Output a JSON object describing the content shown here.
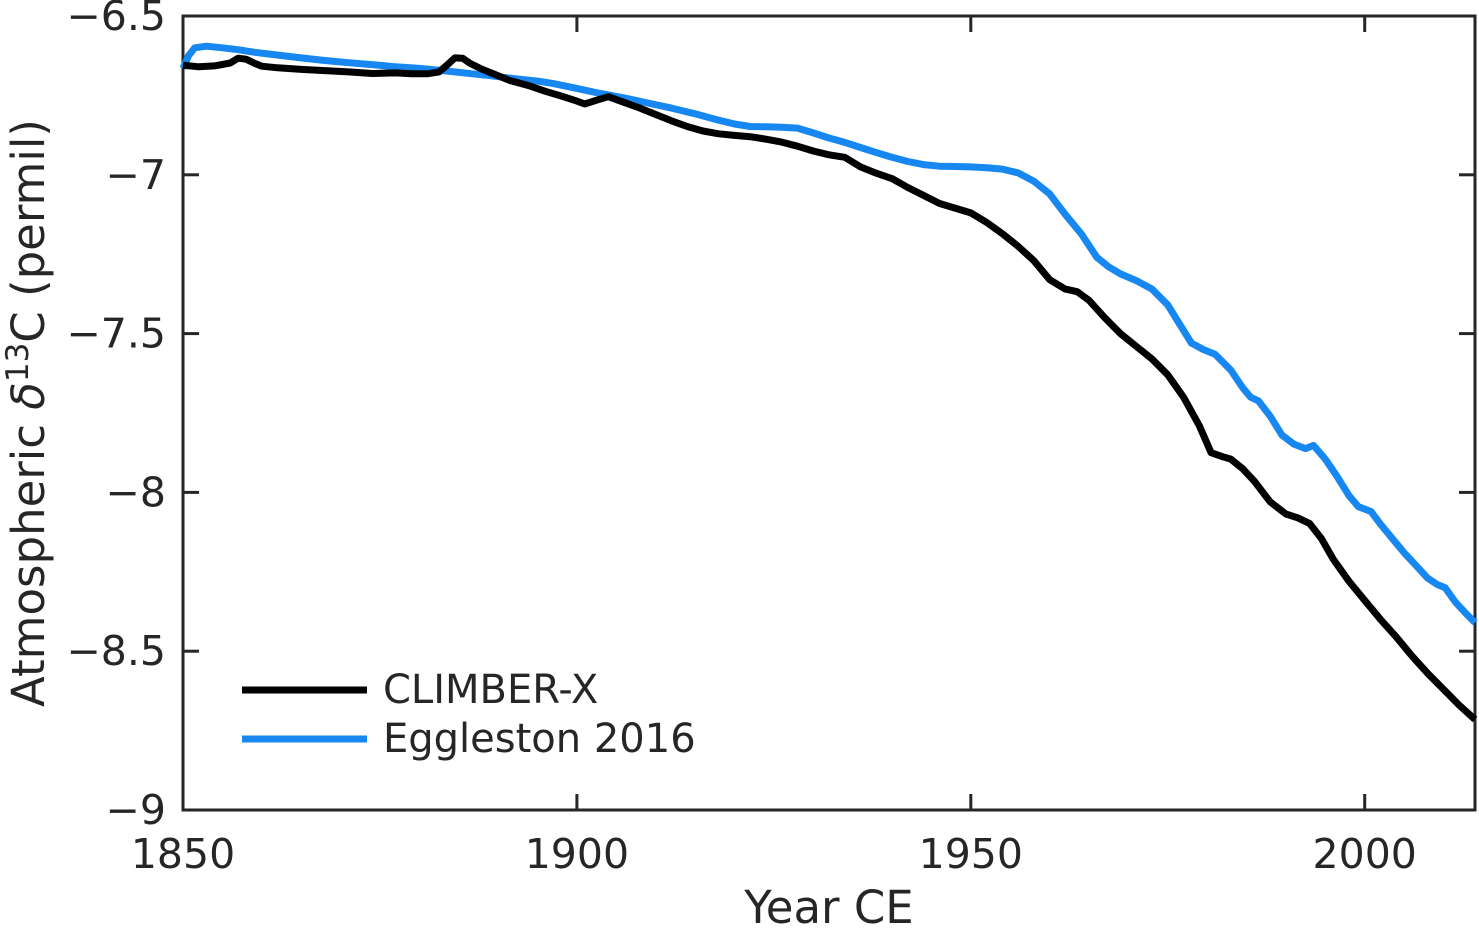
{
  "figure": {
    "background": "#ffffff",
    "axis_color": "#262626",
    "text_color": "#262626"
  },
  "chart_data": {
    "type": "line",
    "title": "",
    "xlabel": "Year CE",
    "ylabel": "Atmospheric δ13C (permil)",
    "ylabel_rich": [
      {
        "t": "Atmospheric ",
        "style": "normal"
      },
      {
        "t": "δ",
        "style": "italic"
      },
      {
        "t": "13",
        "sup": true
      },
      {
        "t": "C (permil)",
        "style": "normal"
      }
    ],
    "xlim": [
      1850,
      2014
    ],
    "ylim": [
      -9,
      -6.5
    ],
    "xticks": [
      1850,
      1900,
      1950,
      2000
    ],
    "xtick_labels": [
      "1850",
      "1900",
      "1950",
      "2000"
    ],
    "yticks": [
      -9,
      -8.5,
      -8,
      -7.5,
      -7,
      -6.5
    ],
    "ytick_labels": [
      "−9",
      "−8.5",
      "−8",
      "−7.5",
      "−7",
      "−6.5"
    ],
    "grid": false,
    "box": true,
    "ticks_direction": "in",
    "legend_position": "lower-left-inside",
    "legend": [
      "CLIMBER-X",
      "Eggleston 2016"
    ],
    "series": [
      {
        "name": "Eggleston 2016",
        "color": "#1787f2",
        "line_width": 7,
        "points": [
          [
            1850,
            -6.665
          ],
          [
            1850.7,
            -6.625
          ],
          [
            1851.5,
            -6.6
          ],
          [
            1853,
            -6.595
          ],
          [
            1855,
            -6.6
          ],
          [
            1857,
            -6.606
          ],
          [
            1859,
            -6.614
          ],
          [
            1861,
            -6.62
          ],
          [
            1863,
            -6.626
          ],
          [
            1865,
            -6.632
          ],
          [
            1868,
            -6.64
          ],
          [
            1871,
            -6.647
          ],
          [
            1874,
            -6.653
          ],
          [
            1877,
            -6.66
          ],
          [
            1880,
            -6.665
          ],
          [
            1883,
            -6.672
          ],
          [
            1886,
            -6.68
          ],
          [
            1889,
            -6.688
          ],
          [
            1892,
            -6.697
          ],
          [
            1895,
            -6.705
          ],
          [
            1897,
            -6.713
          ],
          [
            1900,
            -6.728
          ],
          [
            1903,
            -6.744
          ],
          [
            1906,
            -6.758
          ],
          [
            1909,
            -6.774
          ],
          [
            1912,
            -6.79
          ],
          [
            1915,
            -6.808
          ],
          [
            1918,
            -6.828
          ],
          [
            1920,
            -6.84
          ],
          [
            1922,
            -6.848
          ],
          [
            1924,
            -6.849
          ],
          [
            1926,
            -6.85
          ],
          [
            1928,
            -6.853
          ],
          [
            1930,
            -6.868
          ],
          [
            1932,
            -6.884
          ],
          [
            1934,
            -6.898
          ],
          [
            1936,
            -6.914
          ],
          [
            1938,
            -6.93
          ],
          [
            1940,
            -6.945
          ],
          [
            1942,
            -6.958
          ],
          [
            1944,
            -6.968
          ],
          [
            1946,
            -6.973
          ],
          [
            1948,
            -6.974
          ],
          [
            1950,
            -6.975
          ],
          [
            1952,
            -6.978
          ],
          [
            1954,
            -6.982
          ],
          [
            1956,
            -6.994
          ],
          [
            1958,
            -7.02
          ],
          [
            1960,
            -7.06
          ],
          [
            1962,
            -7.125
          ],
          [
            1964,
            -7.185
          ],
          [
            1966,
            -7.26
          ],
          [
            1967.5,
            -7.29
          ],
          [
            1969,
            -7.312
          ],
          [
            1971,
            -7.333
          ],
          [
            1973,
            -7.36
          ],
          [
            1975,
            -7.41
          ],
          [
            1976.5,
            -7.47
          ],
          [
            1978,
            -7.53
          ],
          [
            1979.5,
            -7.55
          ],
          [
            1981,
            -7.565
          ],
          [
            1983,
            -7.615
          ],
          [
            1984.5,
            -7.67
          ],
          [
            1985.5,
            -7.7
          ],
          [
            1986.5,
            -7.712
          ],
          [
            1988,
            -7.76
          ],
          [
            1989.5,
            -7.82
          ],
          [
            1991,
            -7.848
          ],
          [
            1992.5,
            -7.862
          ],
          [
            1993.5,
            -7.852
          ],
          [
            1995,
            -7.895
          ],
          [
            1996.5,
            -7.95
          ],
          [
            1998,
            -8.01
          ],
          [
            1999.2,
            -8.045
          ],
          [
            2000.8,
            -8.06
          ],
          [
            2002,
            -8.1
          ],
          [
            2003.5,
            -8.145
          ],
          [
            2005,
            -8.19
          ],
          [
            2006.5,
            -8.23
          ],
          [
            2008,
            -8.27
          ],
          [
            2009.2,
            -8.29
          ],
          [
            2010.2,
            -8.3
          ],
          [
            2011.5,
            -8.345
          ],
          [
            2013,
            -8.385
          ],
          [
            2014,
            -8.41
          ]
        ]
      },
      {
        "name": "CLIMBER-X",
        "color": "#000000",
        "line_width": 7,
        "points": [
          [
            1850,
            -6.655
          ],
          [
            1852,
            -6.66
          ],
          [
            1854,
            -6.657
          ],
          [
            1856,
            -6.648
          ],
          [
            1857,
            -6.633
          ],
          [
            1858,
            -6.636
          ],
          [
            1859,
            -6.648
          ],
          [
            1860,
            -6.658
          ],
          [
            1862,
            -6.663
          ],
          [
            1865,
            -6.668
          ],
          [
            1868,
            -6.672
          ],
          [
            1871,
            -6.676
          ],
          [
            1874,
            -6.681
          ],
          [
            1877,
            -6.679
          ],
          [
            1879,
            -6.682
          ],
          [
            1881,
            -6.682
          ],
          [
            1882.5,
            -6.676
          ],
          [
            1883.5,
            -6.655
          ],
          [
            1884.5,
            -6.632
          ],
          [
            1885.5,
            -6.633
          ],
          [
            1886.5,
            -6.65
          ],
          [
            1888,
            -6.668
          ],
          [
            1889.5,
            -6.683
          ],
          [
            1891.5,
            -6.703
          ],
          [
            1894,
            -6.72
          ],
          [
            1896,
            -6.737
          ],
          [
            1898,
            -6.752
          ],
          [
            1900,
            -6.768
          ],
          [
            1901,
            -6.777
          ],
          [
            1902.5,
            -6.765
          ],
          [
            1904,
            -6.754
          ],
          [
            1906,
            -6.772
          ],
          [
            1908,
            -6.79
          ],
          [
            1910,
            -6.81
          ],
          [
            1912,
            -6.83
          ],
          [
            1914,
            -6.848
          ],
          [
            1916,
            -6.862
          ],
          [
            1918,
            -6.871
          ],
          [
            1920,
            -6.876
          ],
          [
            1922,
            -6.88
          ],
          [
            1924,
            -6.888
          ],
          [
            1926,
            -6.897
          ],
          [
            1928,
            -6.91
          ],
          [
            1930,
            -6.925
          ],
          [
            1932,
            -6.937
          ],
          [
            1934,
            -6.945
          ],
          [
            1936,
            -6.975
          ],
          [
            1938,
            -6.995
          ],
          [
            1940,
            -7.012
          ],
          [
            1942,
            -7.04
          ],
          [
            1944,
            -7.065
          ],
          [
            1946,
            -7.09
          ],
          [
            1948,
            -7.105
          ],
          [
            1950,
            -7.12
          ],
          [
            1952,
            -7.15
          ],
          [
            1954,
            -7.185
          ],
          [
            1956,
            -7.225
          ],
          [
            1958,
            -7.27
          ],
          [
            1960,
            -7.33
          ],
          [
            1962,
            -7.36
          ],
          [
            1963.5,
            -7.368
          ],
          [
            1965,
            -7.395
          ],
          [
            1967,
            -7.45
          ],
          [
            1969,
            -7.5
          ],
          [
            1971,
            -7.54
          ],
          [
            1973,
            -7.58
          ],
          [
            1975,
            -7.63
          ],
          [
            1977,
            -7.7
          ],
          [
            1979,
            -7.79
          ],
          [
            1980.5,
            -7.875
          ],
          [
            1982,
            -7.888
          ],
          [
            1983,
            -7.895
          ],
          [
            1984.5,
            -7.925
          ],
          [
            1986,
            -7.965
          ],
          [
            1988,
            -8.03
          ],
          [
            1990,
            -8.068
          ],
          [
            1991.5,
            -8.08
          ],
          [
            1993,
            -8.098
          ],
          [
            1994.5,
            -8.145
          ],
          [
            1996,
            -8.21
          ],
          [
            1998,
            -8.28
          ],
          [
            2000,
            -8.34
          ],
          [
            2002,
            -8.4
          ],
          [
            2004,
            -8.455
          ],
          [
            2006,
            -8.515
          ],
          [
            2008,
            -8.57
          ],
          [
            2010,
            -8.62
          ],
          [
            2012,
            -8.67
          ],
          [
            2014,
            -8.715
          ]
        ]
      }
    ],
    "legend_order": [
      "CLIMBER-X",
      "Eggleston 2016"
    ]
  }
}
